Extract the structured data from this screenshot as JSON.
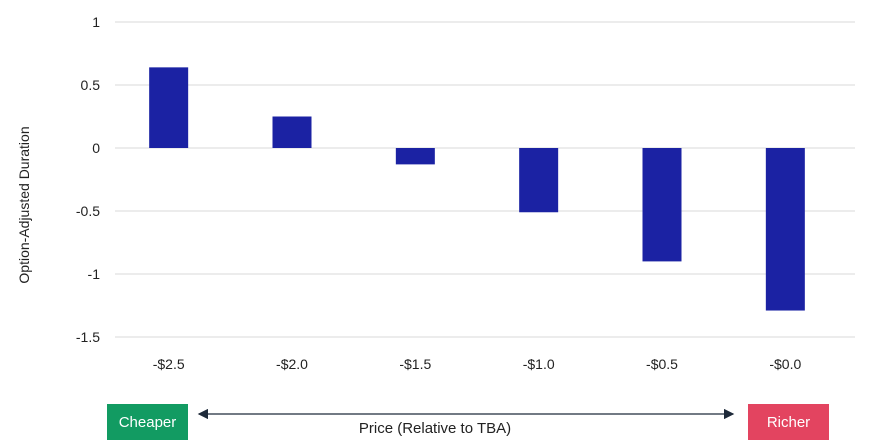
{
  "chart_data": {
    "type": "bar",
    "title": "",
    "categories": [
      "-$2.5",
      "-$2.0",
      "-$1.5",
      "-$1.0",
      "-$0.5",
      "-$0.0"
    ],
    "values": [
      0.64,
      0.25,
      -0.13,
      -0.51,
      -0.9,
      -1.29
    ],
    "ylabel": "Option-Adjusted Duration",
    "xlabel": "Price (Relative to TBA)",
    "ylim": [
      -1.5,
      1
    ],
    "yticks": [
      1,
      0.5,
      0,
      -0.5,
      -1,
      -1.5
    ],
    "ytick_labels": [
      "1",
      "0.5",
      "0",
      "-0.5",
      "-1",
      "-1.5"
    ],
    "grid": true,
    "bar_color": "#1b22a3",
    "annotations": {
      "left_label": "Cheaper",
      "right_label": "Richer",
      "left_color": "#129b62",
      "right_color": "#e34460"
    }
  }
}
